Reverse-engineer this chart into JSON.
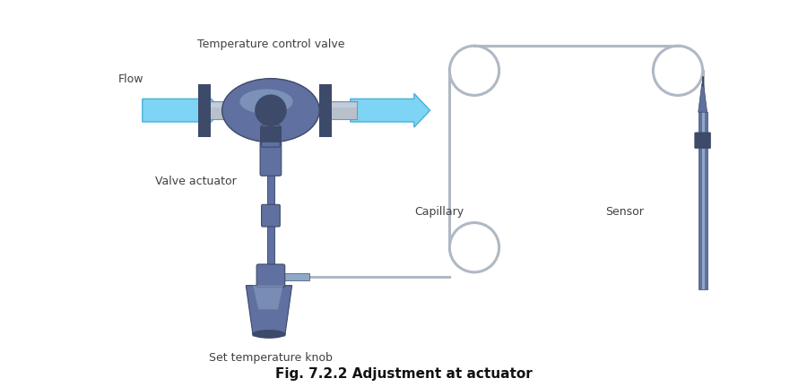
{
  "bg_color": "#ffffff",
  "title": "Fig. 7.2.2 Adjustment at actuator",
  "title_fontsize": 11,
  "title_bold": true,
  "label_valve": "Temperature control valve",
  "label_actuator": "Valve actuator",
  "label_capillary": "Capillary",
  "label_sensor": "Sensor",
  "label_knob": "Set temperature knob",
  "label_flow": "Flow",
  "label_fontsize": 9,
  "pipe_color": "#b8c0cc",
  "pipe_dark": "#888fa0",
  "valve_dark": "#3d4a6a",
  "valve_mid": "#6070a0",
  "valve_light": "#90a8c8",
  "valve_highlight": "#c0cce0",
  "capillary_color": "#b0b8c4",
  "sensor_dark": "#3d4a6a",
  "sensor_mid": "#6070a0",
  "sensor_light": "#90a8c8",
  "arrow_fill": "#7dd4f4",
  "arrow_edge": "#4ab0d8",
  "text_color": "#404040"
}
